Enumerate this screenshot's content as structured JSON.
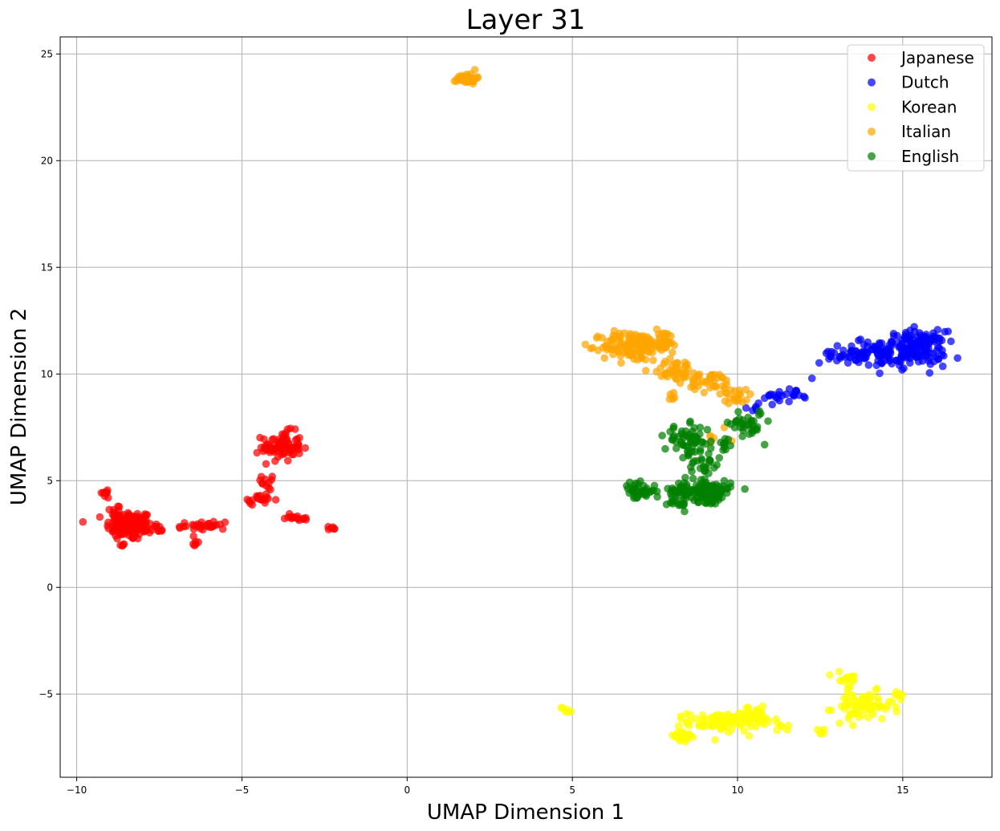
{
  "chart_data": {
    "type": "scatter",
    "title": "Layer 31",
    "xlabel": "UMAP Dimension 1",
    "ylabel": "UMAP Dimension 2",
    "xlim": [
      -10.5,
      17.7
    ],
    "ylim": [
      -8.9,
      25.8
    ],
    "xticks": [
      -10,
      -5,
      0,
      5,
      10,
      15
    ],
    "yticks": [
      -5,
      0,
      5,
      10,
      15,
      20,
      25
    ],
    "xtick_labels": [
      "−10",
      "−5",
      "0",
      "5",
      "10",
      "15"
    ],
    "ytick_labels": [
      "−5",
      "0",
      "5",
      "10",
      "15",
      "20",
      "25"
    ],
    "grid": true,
    "legend_position": "top-right",
    "series": [
      {
        "name": "Japanese",
        "color": "#ff0000",
        "clusters": [
          {
            "cx": -8.4,
            "cy": 2.9,
            "sx": 0.35,
            "sy": 0.35,
            "n": 130
          },
          {
            "cx": -9.1,
            "cy": 4.4,
            "sx": 0.1,
            "sy": 0.15,
            "n": 10
          },
          {
            "cx": -8.8,
            "cy": 3.6,
            "sx": 0.1,
            "sy": 0.15,
            "n": 10
          },
          {
            "cx": -8.6,
            "cy": 2.0,
            "sx": 0.05,
            "sy": 0.05,
            "n": 4
          },
          {
            "cx": -7.7,
            "cy": 2.7,
            "sx": 0.2,
            "sy": 0.1,
            "n": 12
          },
          {
            "cx": -6.9,
            "cy": 2.85,
            "sx": 0.15,
            "sy": 0.05,
            "n": 4
          },
          {
            "cx": -6.0,
            "cy": 2.9,
            "sx": 0.3,
            "sy": 0.12,
            "n": 25
          },
          {
            "cx": -6.4,
            "cy": 2.0,
            "sx": 0.05,
            "sy": 0.1,
            "n": 5
          },
          {
            "cx": -3.8,
            "cy": 6.6,
            "sx": 0.3,
            "sy": 0.35,
            "n": 80
          },
          {
            "cx": -4.2,
            "cy": 5.0,
            "sx": 0.1,
            "sy": 0.4,
            "n": 12
          },
          {
            "cx": -4.5,
            "cy": 4.1,
            "sx": 0.25,
            "sy": 0.1,
            "n": 18
          },
          {
            "cx": -3.3,
            "cy": 3.3,
            "sx": 0.3,
            "sy": 0.1,
            "n": 15
          },
          {
            "cx": -2.3,
            "cy": 2.75,
            "sx": 0.1,
            "sy": 0.05,
            "n": 6
          }
        ]
      },
      {
        "name": "Dutch",
        "color": "#0000ff",
        "clusters": [
          {
            "cx": 15.4,
            "cy": 11.2,
            "sx": 0.45,
            "sy": 0.4,
            "n": 160
          },
          {
            "cx": 14.3,
            "cy": 11.0,
            "sx": 0.35,
            "sy": 0.35,
            "n": 50
          },
          {
            "cx": 13.2,
            "cy": 10.9,
            "sx": 0.35,
            "sy": 0.2,
            "n": 35
          },
          {
            "cx": 11.5,
            "cy": 9.0,
            "sx": 0.35,
            "sy": 0.15,
            "n": 22
          },
          {
            "cx": 10.6,
            "cy": 8.6,
            "sx": 0.15,
            "sy": 0.2,
            "n": 8
          },
          {
            "cx": 12.25,
            "cy": 9.75,
            "sx": 0.03,
            "sy": 0.03,
            "n": 1
          }
        ]
      },
      {
        "name": "Korean",
        "color": "#ffff00",
        "clusters": [
          {
            "cx": 9.6,
            "cy": -6.3,
            "sx": 0.55,
            "sy": 0.22,
            "n": 90
          },
          {
            "cx": 8.3,
            "cy": -7.0,
            "sx": 0.25,
            "sy": 0.15,
            "n": 22
          },
          {
            "cx": 10.5,
            "cy": -6.0,
            "sx": 0.35,
            "sy": 0.2,
            "n": 30
          },
          {
            "cx": 11.4,
            "cy": -6.5,
            "sx": 0.1,
            "sy": 0.1,
            "n": 5
          },
          {
            "cx": 13.8,
            "cy": -5.6,
            "sx": 0.45,
            "sy": 0.35,
            "n": 70
          },
          {
            "cx": 13.3,
            "cy": -4.3,
            "sx": 0.2,
            "sy": 0.2,
            "n": 15
          },
          {
            "cx": 14.8,
            "cy": -5.0,
            "sx": 0.15,
            "sy": 0.1,
            "n": 8
          },
          {
            "cx": 12.5,
            "cy": -6.7,
            "sx": 0.12,
            "sy": 0.1,
            "n": 6
          },
          {
            "cx": 4.85,
            "cy": -5.75,
            "sx": 0.1,
            "sy": 0.1,
            "n": 6
          }
        ]
      },
      {
        "name": "Italian",
        "color": "#ffa500",
        "clusters": [
          {
            "cx": 1.8,
            "cy": 23.85,
            "sx": 0.15,
            "sy": 0.12,
            "n": 40
          },
          {
            "cx": 6.8,
            "cy": 11.3,
            "sx": 0.45,
            "sy": 0.35,
            "n": 120
          },
          {
            "cx": 7.7,
            "cy": 11.5,
            "sx": 0.3,
            "sy": 0.3,
            "n": 30
          },
          {
            "cx": 8.2,
            "cy": 10.2,
            "sx": 0.4,
            "sy": 0.25,
            "n": 40
          },
          {
            "cx": 9.2,
            "cy": 9.6,
            "sx": 0.35,
            "sy": 0.22,
            "n": 35
          },
          {
            "cx": 9.9,
            "cy": 9.0,
            "sx": 0.3,
            "sy": 0.2,
            "n": 20
          },
          {
            "cx": 8.0,
            "cy": 9.0,
            "sx": 0.1,
            "sy": 0.2,
            "n": 6
          },
          {
            "cx": 9.5,
            "cy": 7.2,
            "sx": 0.2,
            "sy": 0.3,
            "n": 6
          }
        ]
      },
      {
        "name": "English",
        "color": "#008000",
        "clusters": [
          {
            "cx": 9.1,
            "cy": 4.5,
            "sx": 0.35,
            "sy": 0.25,
            "n": 130
          },
          {
            "cx": 8.2,
            "cy": 4.5,
            "sx": 0.2,
            "sy": 0.25,
            "n": 30
          },
          {
            "cx": 7.0,
            "cy": 4.5,
            "sx": 0.25,
            "sy": 0.2,
            "n": 40
          },
          {
            "cx": 8.5,
            "cy": 6.9,
            "sx": 0.35,
            "sy": 0.35,
            "n": 60
          },
          {
            "cx": 9.0,
            "cy": 5.8,
            "sx": 0.25,
            "sy": 0.4,
            "n": 25
          },
          {
            "cx": 10.3,
            "cy": 7.7,
            "sx": 0.25,
            "sy": 0.35,
            "n": 35
          },
          {
            "cx": 9.6,
            "cy": 6.6,
            "sx": 0.15,
            "sy": 0.25,
            "n": 10
          },
          {
            "cx": 8.3,
            "cy": 3.9,
            "sx": 0.1,
            "sy": 0.15,
            "n": 5
          }
        ]
      }
    ]
  }
}
